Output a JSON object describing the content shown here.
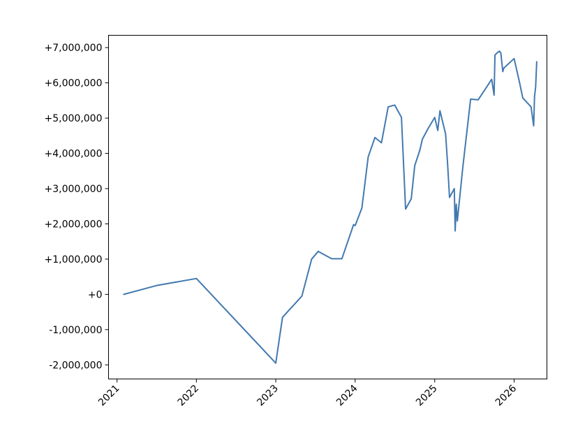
{
  "chart_data": {
    "type": "line",
    "title": "",
    "xlabel": "",
    "ylabel": "",
    "grid": false,
    "legend": "none",
    "x_ticks": [
      "2021",
      "2022",
      "2023",
      "2024",
      "2025",
      "2026"
    ],
    "y_ticks": [
      "-2,000,000",
      "-1,000,000",
      "+0",
      "+1,000,000",
      "+2,000,000",
      "+3,000,000",
      "+4,000,000",
      "+5,000,000",
      "+6,000,000",
      "+7,000,000"
    ],
    "xlim": [
      "2020-11-23",
      "2026-06-01"
    ],
    "ylim": [
      -2400000,
      7350000
    ],
    "series": [
      {
        "color": "#4279b0",
        "x": [
          "2021-02-01",
          "2021-07-01",
          "2022-01-01",
          "2023-01-01",
          "2023-02-01",
          "2023-05-01",
          "2023-06-15",
          "2023-07-15",
          "2023-09-15",
          "2023-11-01",
          "2023-12-25",
          "2024-01-01",
          "2024-02-01",
          "2024-03-01",
          "2024-04-01",
          "2024-05-01",
          "2024-06-01",
          "2024-07-01",
          "2024-08-01",
          "2024-08-20",
          "2024-09-15",
          "2024-10-01",
          "2024-10-25",
          "2024-11-05",
          "2024-12-01",
          "2025-01-01",
          "2025-01-15",
          "2025-01-25",
          "2025-02-20",
          "2025-03-01",
          "2025-03-10",
          "2025-04-01",
          "2025-04-05",
          "2025-04-10",
          "2025-04-15",
          "2025-05-10",
          "2025-06-15",
          "2025-07-20",
          "2025-09-20",
          "2025-10-01",
          "2025-10-05",
          "2025-10-15",
          "2025-10-25",
          "2025-11-01",
          "2025-11-10",
          "2025-11-15",
          "2026-01-01",
          "2026-01-25",
          "2026-02-10",
          "2026-03-20",
          "2026-04-01",
          "2026-04-05",
          "2026-04-10",
          "2026-04-15"
        ],
        "y": [
          0,
          250000,
          450000,
          -1950000,
          -650000,
          -50000,
          1000000,
          1220000,
          1010000,
          1010000,
          1980000,
          1950000,
          2450000,
          3900000,
          4450000,
          4300000,
          5320000,
          5370000,
          5020000,
          2420000,
          2710000,
          3650000,
          4100000,
          4400000,
          4700000,
          5020000,
          4650000,
          5210000,
          4550000,
          3720000,
          2750000,
          3000000,
          1800000,
          2560000,
          2080000,
          3600000,
          5540000,
          5520000,
          6100000,
          5650000,
          6790000,
          6850000,
          6900000,
          6850000,
          6320000,
          6420000,
          6690000,
          6040000,
          5570000,
          5320000,
          4780000,
          5620000,
          5880000,
          6600000
        ]
      }
    ]
  }
}
